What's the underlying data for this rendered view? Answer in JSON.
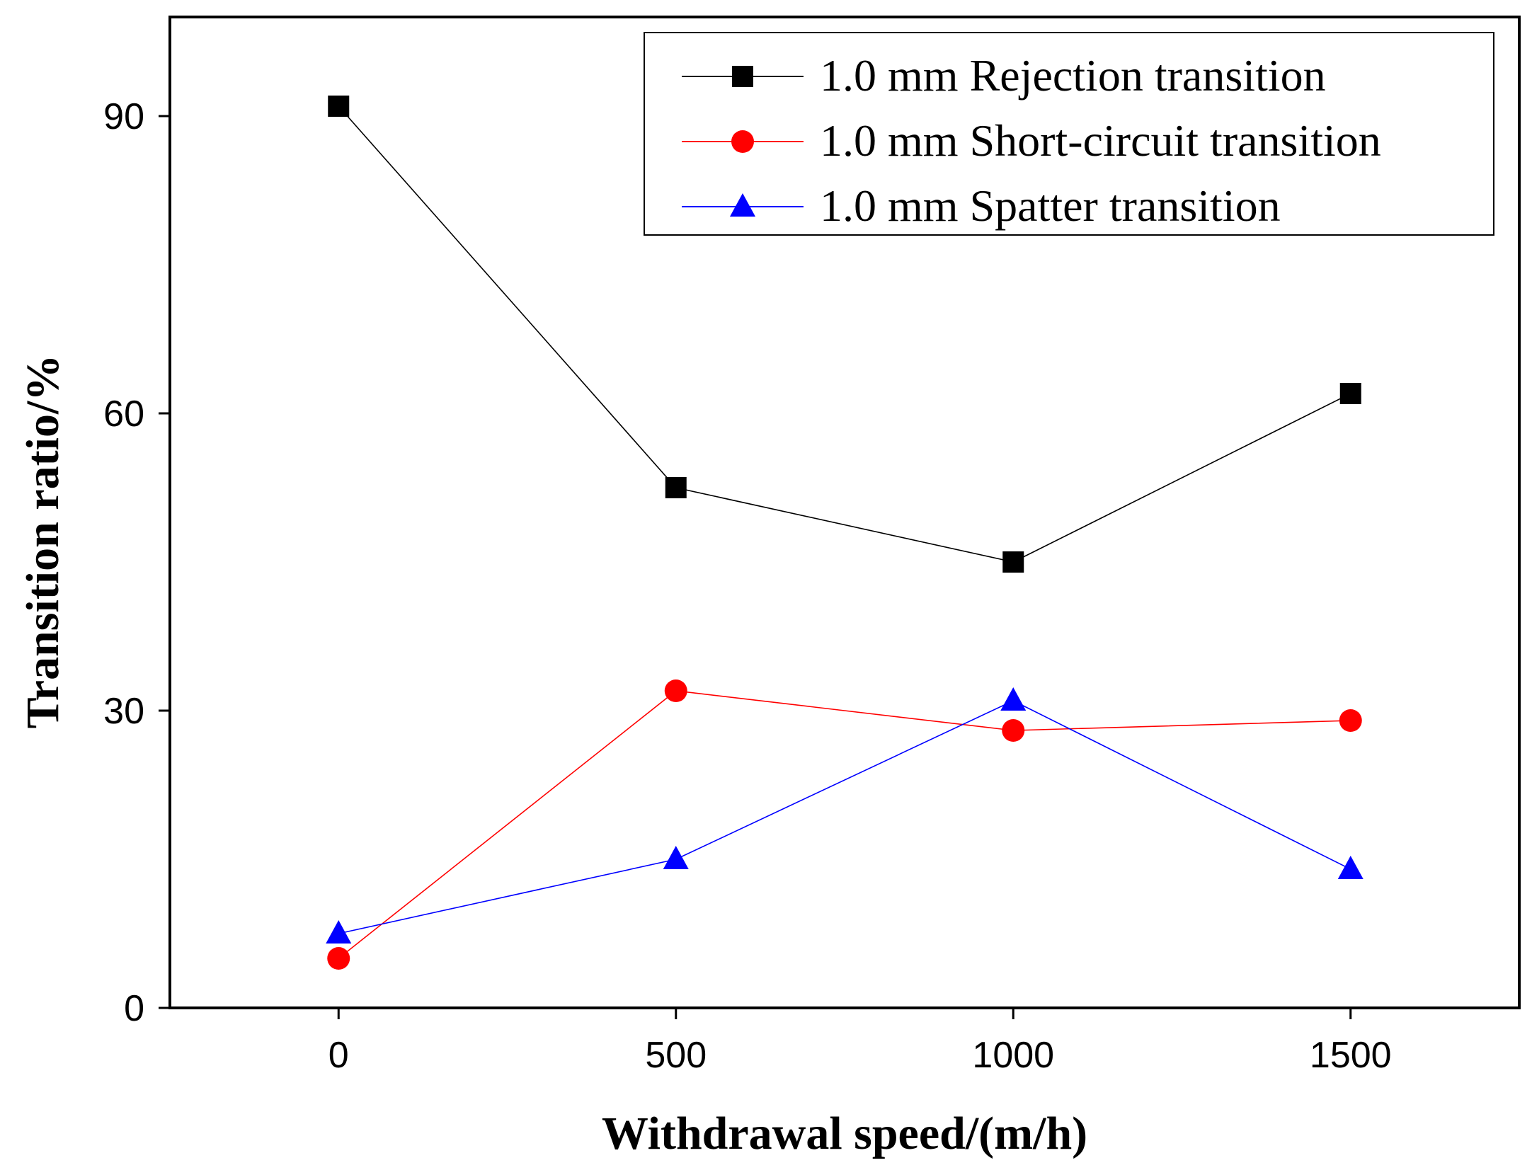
{
  "chart_data": {
    "type": "line",
    "title": "",
    "xlabel": "Withdrawal speed/(m/h)",
    "ylabel": "Transition ratio/%",
    "xlim": [
      -250,
      1750
    ],
    "ylim": [
      0,
      100
    ],
    "x_ticks": [
      0,
      500,
      1000,
      1500
    ],
    "x_tick_labels": [
      "0",
      "500",
      "1000",
      "1500"
    ],
    "y_ticks": [
      0,
      30,
      60,
      90
    ],
    "y_tick_labels": [
      "0",
      "30",
      "60",
      "90"
    ],
    "grid": false,
    "legend_position": "top-right",
    "x": [
      0,
      500,
      1000,
      1500
    ],
    "series": [
      {
        "name": "1.0 mm Rejection transition",
        "marker": "square",
        "color": "#000000",
        "values": [
          91,
          52.5,
          45,
          62
        ]
      },
      {
        "name": "1.0 mm Short-circuit transition",
        "marker": "circle",
        "color": "#ff0000",
        "values": [
          5,
          32,
          28,
          29
        ]
      },
      {
        "name": "1.0 mm Spatter transition",
        "marker": "triangle",
        "color": "#0000ff",
        "values": [
          7.5,
          15,
          31,
          14
        ]
      }
    ]
  }
}
